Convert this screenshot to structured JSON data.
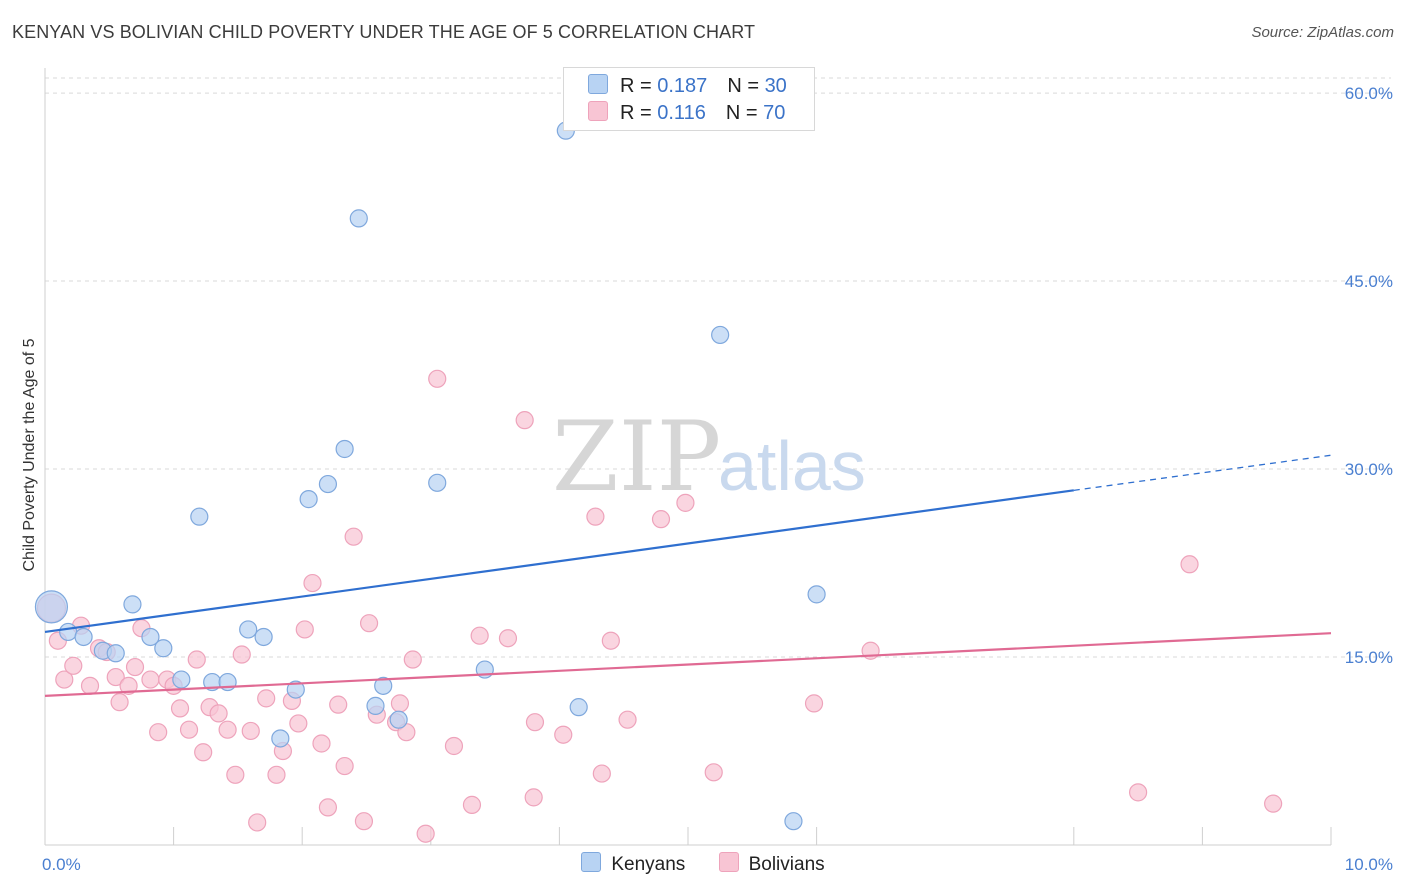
{
  "title": "KENYAN VS BOLIVIAN CHILD POVERTY UNDER THE AGE OF 5 CORRELATION CHART",
  "source": "Source: ZipAtlas.com",
  "watermark": {
    "zip": "ZIP",
    "atlas": "atlas"
  },
  "legend": {
    "kenyans": {
      "r_label": "R = ",
      "r_value": "0.187",
      "n_label": "N = ",
      "n_value": "30"
    },
    "bolivians": {
      "r_label": "R = ",
      "r_value": "0.116",
      "n_label": "N = ",
      "n_value": "70"
    }
  },
  "colors": {
    "kenyan_fill": "#b8d3f3",
    "kenyan_stroke": "#7fa8dd",
    "kenyan_line": "#2f6fcf",
    "bolivian_fill": "#f8c5d4",
    "bolivian_stroke": "#eea3bb",
    "bolivian_line": "#e06a93",
    "tick": "#4a7fd0",
    "grid": "#d9d9d9"
  },
  "chart_data": {
    "type": "scatter",
    "title": "KENYAN VS BOLIVIAN CHILD POVERTY UNDER THE AGE OF 5 CORRELATION CHART",
    "xlabel": "",
    "ylabel": "Child Poverty Under the Age of 5",
    "xlim": [
      0,
      10
    ],
    "ylim": [
      0,
      62
    ],
    "x_tick_labels": [
      {
        "value": 0,
        "label": "0.0%"
      },
      {
        "value": 10,
        "label": "10.0%"
      }
    ],
    "y_tick_labels": [
      {
        "value": 15,
        "label": "15.0%"
      },
      {
        "value": 30,
        "label": "30.0%"
      },
      {
        "value": 45,
        "label": "45.0%"
      },
      {
        "value": 60,
        "label": "60.0%"
      }
    ],
    "grid": "horizontal dashed",
    "legend_position": "top-center",
    "series": [
      {
        "name": "Kenyans",
        "trend": {
          "x": [
            0,
            8.0
          ],
          "y": [
            17.0,
            28.3
          ],
          "dashed_x": [
            8.0,
            10.0
          ],
          "dashed_y": [
            28.3,
            31.1
          ]
        },
        "points": [
          {
            "x": 0.05,
            "y": 19.0,
            "r": 16
          },
          {
            "x": 0.18,
            "y": 17.0
          },
          {
            "x": 0.3,
            "y": 16.6
          },
          {
            "x": 0.45,
            "y": 15.5
          },
          {
            "x": 0.55,
            "y": 15.3
          },
          {
            "x": 0.68,
            "y": 19.2
          },
          {
            "x": 0.82,
            "y": 16.6
          },
          {
            "x": 0.92,
            "y": 15.7
          },
          {
            "x": 1.06,
            "y": 13.2
          },
          {
            "x": 1.2,
            "y": 26.2
          },
          {
            "x": 1.3,
            "y": 13.0
          },
          {
            "x": 1.42,
            "y": 13.0
          },
          {
            "x": 1.58,
            "y": 17.2
          },
          {
            "x": 1.7,
            "y": 16.6
          },
          {
            "x": 1.83,
            "y": 8.5
          },
          {
            "x": 1.95,
            "y": 12.4
          },
          {
            "x": 2.05,
            "y": 27.6
          },
          {
            "x": 2.2,
            "y": 28.8
          },
          {
            "x": 2.33,
            "y": 31.6
          },
          {
            "x": 2.44,
            "y": 50.0
          },
          {
            "x": 2.57,
            "y": 11.1
          },
          {
            "x": 2.63,
            "y": 12.7
          },
          {
            "x": 2.75,
            "y": 10.0
          },
          {
            "x": 3.05,
            "y": 28.9
          },
          {
            "x": 3.42,
            "y": 14.0
          },
          {
            "x": 4.05,
            "y": 57.0
          },
          {
            "x": 4.15,
            "y": 11.0
          },
          {
            "x": 5.25,
            "y": 40.7
          },
          {
            "x": 5.82,
            "y": 1.9
          },
          {
            "x": 6.0,
            "y": 20.0
          }
        ]
      },
      {
        "name": "Bolivians",
        "trend": {
          "x": [
            0,
            10
          ],
          "y": [
            11.9,
            16.9
          ]
        },
        "points": [
          {
            "x": 0.05,
            "y": 18.9,
            "r": 14
          },
          {
            "x": 0.1,
            "y": 16.3
          },
          {
            "x": 0.15,
            "y": 13.2
          },
          {
            "x": 0.22,
            "y": 14.3
          },
          {
            "x": 0.28,
            "y": 17.5
          },
          {
            "x": 0.35,
            "y": 12.7
          },
          {
            "x": 0.42,
            "y": 15.7
          },
          {
            "x": 0.48,
            "y": 15.4
          },
          {
            "x": 0.55,
            "y": 13.4
          },
          {
            "x": 0.58,
            "y": 11.4
          },
          {
            "x": 0.65,
            "y": 12.7
          },
          {
            "x": 0.7,
            "y": 14.2
          },
          {
            "x": 0.75,
            "y": 17.3
          },
          {
            "x": 0.82,
            "y": 13.2
          },
          {
            "x": 0.88,
            "y": 9.0
          },
          {
            "x": 0.95,
            "y": 13.2
          },
          {
            "x": 1.0,
            "y": 12.7
          },
          {
            "x": 1.05,
            "y": 10.9
          },
          {
            "x": 1.12,
            "y": 9.2
          },
          {
            "x": 1.18,
            "y": 14.8
          },
          {
            "x": 1.23,
            "y": 7.4
          },
          {
            "x": 1.28,
            "y": 11.0
          },
          {
            "x": 1.35,
            "y": 10.5
          },
          {
            "x": 1.42,
            "y": 9.2
          },
          {
            "x": 1.48,
            "y": 5.6
          },
          {
            "x": 1.53,
            "y": 15.2
          },
          {
            "x": 1.6,
            "y": 9.1
          },
          {
            "x": 1.65,
            "y": 1.8
          },
          {
            "x": 1.72,
            "y": 11.7
          },
          {
            "x": 1.8,
            "y": 5.6
          },
          {
            "x": 1.85,
            "y": 7.5
          },
          {
            "x": 1.92,
            "y": 11.5
          },
          {
            "x": 1.97,
            "y": 9.7
          },
          {
            "x": 2.02,
            "y": 17.2
          },
          {
            "x": 2.08,
            "y": 20.9
          },
          {
            "x": 2.15,
            "y": 8.1
          },
          {
            "x": 2.2,
            "y": 3.0
          },
          {
            "x": 2.28,
            "y": 11.2
          },
          {
            "x": 2.33,
            "y": 6.3
          },
          {
            "x": 2.4,
            "y": 24.6
          },
          {
            "x": 2.48,
            "y": 1.9
          },
          {
            "x": 2.52,
            "y": 17.7
          },
          {
            "x": 2.58,
            "y": 10.4
          },
          {
            "x": 2.73,
            "y": 9.8
          },
          {
            "x": 2.76,
            "y": 11.3
          },
          {
            "x": 2.81,
            "y": 9.0
          },
          {
            "x": 2.86,
            "y": 14.8
          },
          {
            "x": 2.96,
            "y": 0.9
          },
          {
            "x": 3.05,
            "y": 37.2
          },
          {
            "x": 3.18,
            "y": 7.9
          },
          {
            "x": 3.32,
            "y": 3.2
          },
          {
            "x": 3.38,
            "y": 16.7
          },
          {
            "x": 3.6,
            "y": 16.5
          },
          {
            "x": 3.73,
            "y": 33.9
          },
          {
            "x": 3.8,
            "y": 3.8
          },
          {
            "x": 3.81,
            "y": 9.8
          },
          {
            "x": 4.03,
            "y": 8.8
          },
          {
            "x": 4.28,
            "y": 26.2
          },
          {
            "x": 4.33,
            "y": 5.7
          },
          {
            "x": 4.4,
            "y": 16.3
          },
          {
            "x": 4.53,
            "y": 10.0
          },
          {
            "x": 4.79,
            "y": 26.0
          },
          {
            "x": 4.98,
            "y": 27.3
          },
          {
            "x": 5.2,
            "y": 5.8
          },
          {
            "x": 5.98,
            "y": 11.3
          },
          {
            "x": 6.42,
            "y": 15.5
          },
          {
            "x": 8.5,
            "y": 4.2
          },
          {
            "x": 8.9,
            "y": 22.4
          },
          {
            "x": 9.55,
            "y": 3.3
          },
          {
            "x": 5.35,
            "y": 58.5
          }
        ]
      }
    ]
  },
  "bottom_legend": [
    {
      "label": "Kenyans"
    },
    {
      "label": "Bolivians"
    }
  ]
}
